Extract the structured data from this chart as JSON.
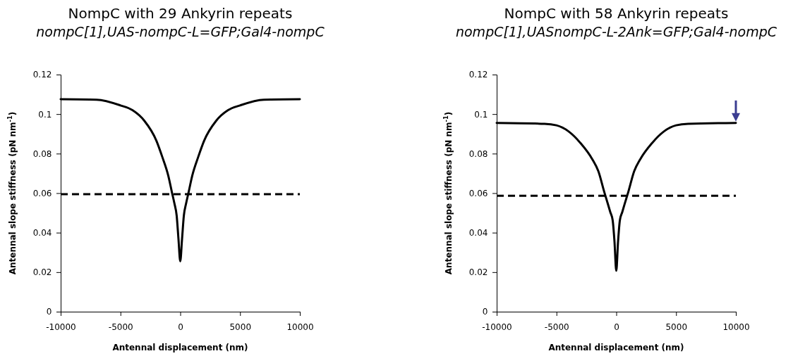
{
  "chart_data": [
    {
      "type": "line",
      "title": "NompC with 29 Ankyrin repeats",
      "subtitle": "nompC[1],UAS-nompC-L=GFP;Gal4-nompC",
      "xlabel": "Antennal displacement (nm)",
      "ylabel": "Antennal slope stiffness (pN nm$^{-1}$)",
      "x": [
        -10000,
        -7000,
        -5000,
        -4000,
        -3000,
        -2000,
        -1500,
        -1000,
        -700,
        -500,
        -300,
        -150,
        0,
        150,
        300,
        500,
        700,
        1000,
        1500,
        2000,
        3000,
        4000,
        5000,
        7000,
        10000
      ],
      "series": [
        {
          "color": "#000000",
          "values": [
            0.1075,
            0.1073,
            0.1044,
            0.102,
            0.0966,
            0.0866,
            0.0783,
            0.0688,
            0.0605,
            0.0551,
            0.0486,
            0.0368,
            0.0255,
            0.0368,
            0.0486,
            0.0551,
            0.0605,
            0.0688,
            0.0783,
            0.0866,
            0.0966,
            0.102,
            0.1044,
            0.1073,
            0.1075
          ]
        }
      ],
      "ref_lines": [
        {
          "axis": "y",
          "value": 0.0595,
          "color": "#000000",
          "line_style": "dashed"
        }
      ],
      "xlim": [
        -10000,
        10000
      ],
      "xticks": [
        -10000,
        -5000,
        0,
        5000,
        10000
      ],
      "ylim": [
        0,
        0.12
      ],
      "yticks": [
        0,
        0.02,
        0.04,
        0.06,
        0.08,
        0.1,
        0.12
      ],
      "grid": false,
      "marker": "none",
      "line_style": "solid"
    },
    {
      "type": "line",
      "title": "NompC with 58 Ankyrin repeats",
      "subtitle": "nompC[1],UASnompC-L-2Ank=GFP;Gal4-nompC",
      "xlabel": "Antennal displacement (nm)",
      "ylabel": "Antennal slope stiffness (pN nm$^{-1}$)",
      "x": [
        -10000,
        -6000,
        -5000,
        -4000,
        -3000,
        -2000,
        -1500,
        -1000,
        -700,
        -500,
        -300,
        -150,
        0,
        150,
        300,
        500,
        700,
        1000,
        1500,
        2000,
        3000,
        4000,
        5000,
        6000,
        10000
      ],
      "series": [
        {
          "color": "#000000",
          "values": [
            0.0955,
            0.0951,
            0.0943,
            0.0913,
            0.0854,
            0.0771,
            0.0711,
            0.0605,
            0.0545,
            0.0504,
            0.0462,
            0.0356,
            0.0207,
            0.0356,
            0.0462,
            0.0504,
            0.0545,
            0.0605,
            0.0711,
            0.0771,
            0.0854,
            0.0913,
            0.0943,
            0.0951,
            0.0955
          ]
        }
      ],
      "ref_lines": [
        {
          "axis": "y",
          "value": 0.0587,
          "color": "#000000",
          "line_style": "dashed"
        }
      ],
      "xlim": [
        -10000,
        10000
      ],
      "xticks": [
        -10000,
        -5000,
        0,
        5000,
        10000
      ],
      "ylim": [
        0,
        0.12
      ],
      "yticks": [
        0,
        0.02,
        0.04,
        0.06,
        0.08,
        0.1,
        0.12
      ],
      "grid": false,
      "marker": "none",
      "line_style": "solid"
    }
  ]
}
